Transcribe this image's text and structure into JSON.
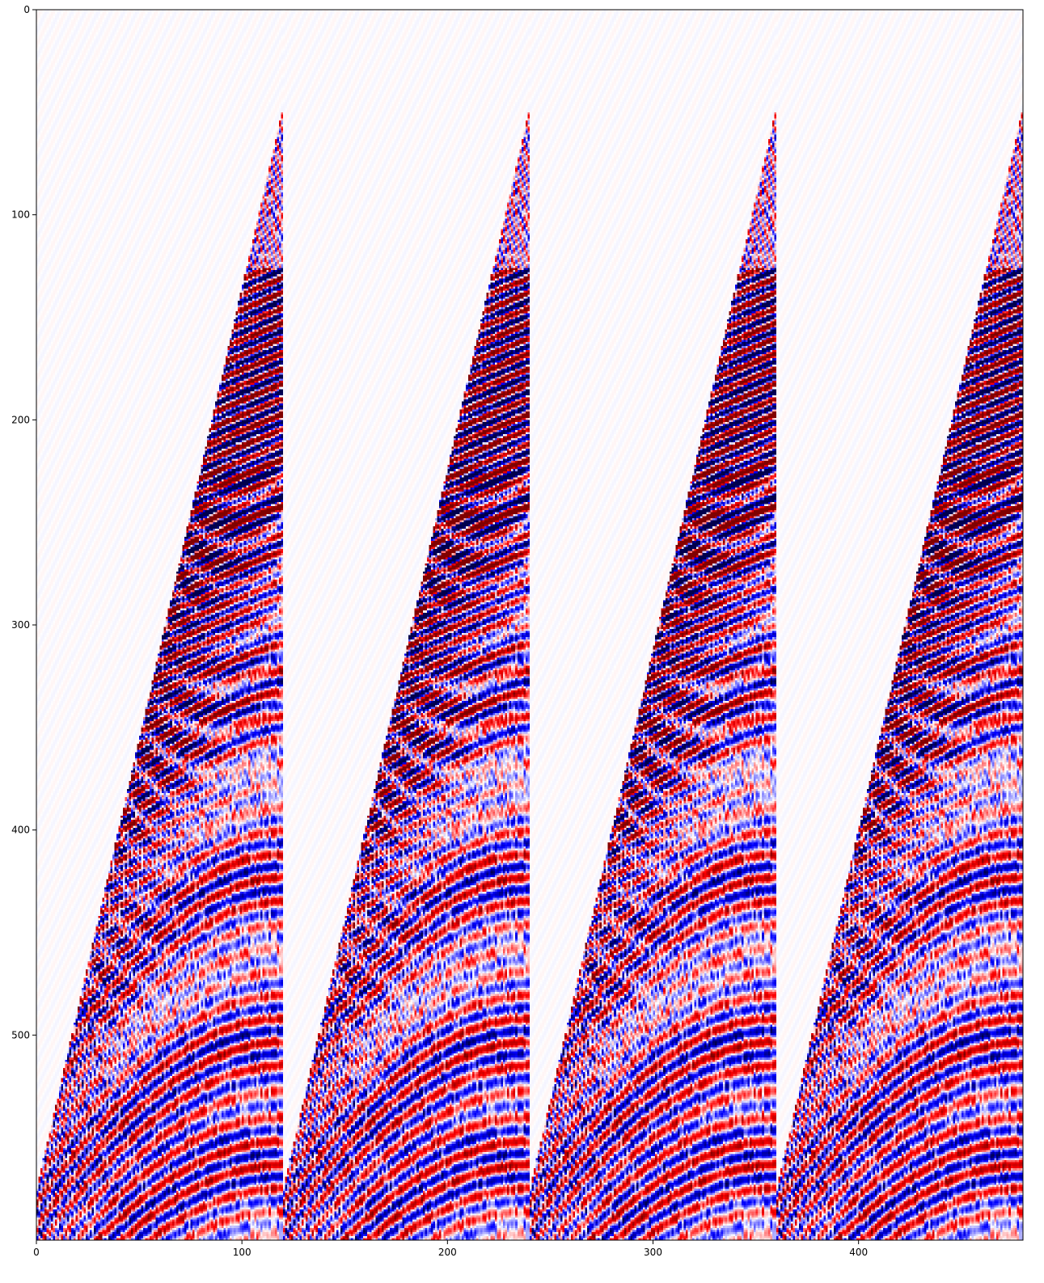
{
  "chart_data": {
    "type": "heatmap",
    "title": "",
    "xlabel": "",
    "ylabel": "",
    "xlim": [
      0,
      480
    ],
    "ylim": [
      600,
      0
    ],
    "x_ticks": [
      0,
      100,
      200,
      300,
      400
    ],
    "y_ticks": [
      0,
      100,
      200,
      300,
      400,
      500
    ],
    "x_tick_labels": [
      "0",
      "100",
      "200",
      "300",
      "400"
    ],
    "y_tick_labels": [
      "0",
      "100",
      "200",
      "300",
      "400",
      "500"
    ],
    "colormap": "seismic",
    "panels": 4,
    "traces_per_panel": 120,
    "grid": false,
    "legend": "none",
    "colors": {
      "negative": "#00004c",
      "negative_mid": "#0000ff",
      "zero": "#ffffff",
      "positive_mid": "#ff0000",
      "positive": "#800000"
    }
  }
}
